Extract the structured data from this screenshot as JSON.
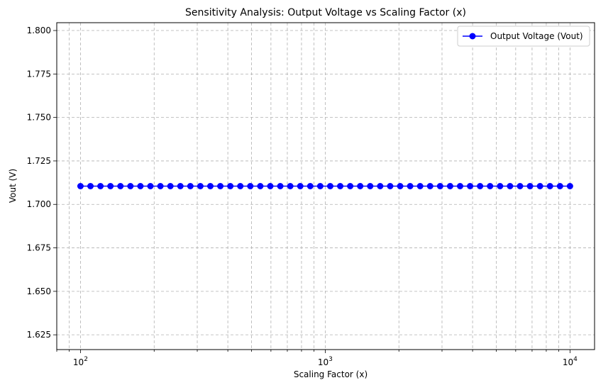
{
  "chart_data": {
    "type": "line",
    "title": "Sensitivity Analysis: Output Voltage vs Scaling Factor (x)",
    "xlabel": "Scaling Factor (x)",
    "ylabel": "Vout (V)",
    "xscale": "log",
    "xlim": [
      80,
      12600
    ],
    "ylim": [
      1.6165,
      1.8045
    ],
    "x_ticks": [
      {
        "value": 100,
        "base": "10",
        "exp": "2"
      },
      {
        "value": 1000,
        "base": "10",
        "exp": "3"
      },
      {
        "value": 10000,
        "base": "10",
        "exp": "4"
      }
    ],
    "y_ticks": [
      1.625,
      1.65,
      1.675,
      1.7,
      1.725,
      1.75,
      1.775,
      1.8
    ],
    "y_tick_labels": [
      "1.625",
      "1.650",
      "1.675",
      "1.700",
      "1.725",
      "1.750",
      "1.775",
      "1.800"
    ],
    "grid": true,
    "legend_position": "top-right",
    "series": [
      {
        "name": "Output Voltage (Vout)",
        "color": "#0000ff",
        "marker": "circle",
        "x_range": [
          100,
          10000
        ],
        "num_points": 50,
        "x_spacing": "log",
        "y_constant": 1.7105
      }
    ]
  }
}
